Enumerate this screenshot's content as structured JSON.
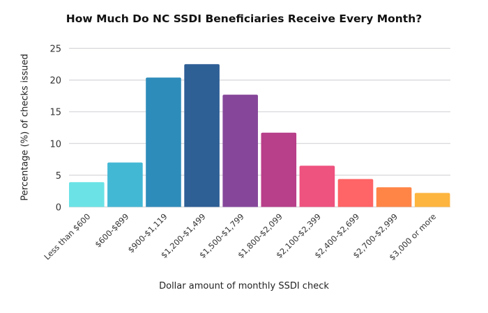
{
  "chart_data": {
    "type": "bar",
    "title": "How Much Do NC SSDI Beneficiaries Receive Every Month?",
    "xlabel": "Dollar amount of monthly SSDI check",
    "ylabel": "Percentage (%) of checks issued",
    "ylim": [
      0,
      25
    ],
    "yticks": [
      0,
      5,
      10,
      15,
      20,
      25
    ],
    "grid": true,
    "categories": [
      "Less than $600",
      "$600-$899",
      "$900-$1,119",
      "$1,200-$1,499",
      "$1,500-$1,799",
      "$1,800-$2,099",
      "$2,100-$2,399",
      "$2,400-$2,699",
      "$2,700-$2,999",
      "$3,000 or more"
    ],
    "values": [
      3.9,
      7.0,
      20.4,
      22.5,
      17.7,
      11.7,
      6.5,
      4.4,
      3.1,
      2.2
    ],
    "colors": [
      "#6be3e6",
      "#43b8d5",
      "#2e8cba",
      "#2e5f95",
      "#86479a",
      "#b83f89",
      "#ee527f",
      "#ff6466",
      "#ff8547",
      "#fdb53f"
    ]
  }
}
